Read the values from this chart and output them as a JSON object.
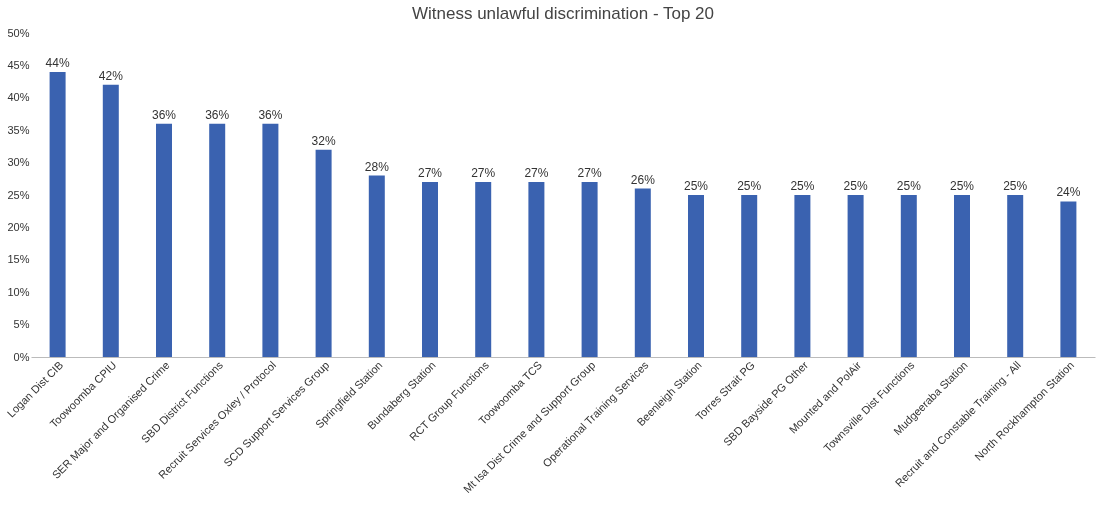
{
  "chart_data": {
    "type": "bar",
    "title": "Witness unlawful discrimination - Top 20",
    "categories": [
      "Logan Dist CIB",
      "Toowoomba CPIU",
      "SER Major and Organised Crime",
      "SBD District Functions",
      "Recruit Services Oxley / Protocol",
      "SCD Support Services Group",
      "Springfield Station",
      "Bundaberg Station",
      "RCT Group Functions",
      "Toowoomba TCS",
      "Mt Isa Dist Crime and Support Group",
      "Operational Training Services",
      "Beenleigh Station",
      "Torres Strait PG",
      "SBD Bayside PG Other",
      "Mounted and PolAir",
      "Townsville Dist Functions",
      "Mudgeeraba Station",
      "Recruit and Constable Training - All",
      "North Rockhampton Station"
    ],
    "values": [
      44,
      42,
      36,
      36,
      36,
      32,
      28,
      27,
      27,
      27,
      27,
      26,
      25,
      25,
      25,
      25,
      25,
      25,
      25,
      24
    ],
    "value_labels": [
      "44%",
      "42%",
      "36%",
      "36%",
      "36%",
      "32%",
      "28%",
      "27%",
      "27%",
      "27%",
      "27%",
      "26%",
      "25%",
      "25%",
      "25%",
      "25%",
      "25%",
      "25%",
      "25%",
      "24%"
    ],
    "color": "#3a62b0",
    "ylim": [
      0,
      50
    ],
    "yticks": [
      {
        "value": 0,
        "label": "0%"
      },
      {
        "value": 5,
        "label": "5%"
      },
      {
        "value": 10,
        "label": "10%"
      },
      {
        "value": 15,
        "label": "15%"
      },
      {
        "value": 20,
        "label": "20%"
      },
      {
        "value": 25,
        "label": "25%"
      },
      {
        "value": 30,
        "label": "30%"
      },
      {
        "value": 35,
        "label": "35%"
      },
      {
        "value": 40,
        "label": "40%"
      },
      {
        "value": 45,
        "label": "45%"
      },
      {
        "value": 50,
        "label": "50%"
      }
    ],
    "grid": false
  }
}
